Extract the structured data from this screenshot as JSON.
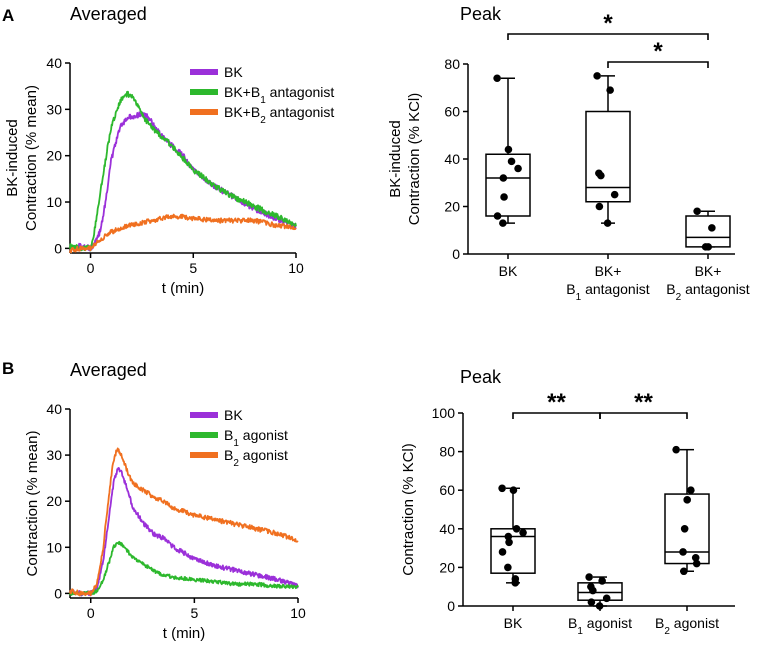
{
  "panels": {
    "A": {
      "letter": "A",
      "line": {
        "title": "Averaged",
        "xlabel": "t (min)",
        "ylabel_lines": [
          "BK-induced",
          "Contraction (% mean)"
        ],
        "xlim": [
          -1,
          10
        ],
        "ylim": [
          -1,
          40
        ],
        "xticks": [
          0,
          5,
          10
        ],
        "yticks": [
          0,
          10,
          20,
          30,
          40
        ],
        "legend": [
          {
            "label": "BK",
            "color": "#9b30d9"
          },
          {
            "label": "BK+B",
            "sub": "1",
            "label_suffix": " antagonist",
            "color": "#2db82d"
          },
          {
            "label": "BK+B",
            "sub": "2",
            "label_suffix": " antagonist",
            "color": "#f07020"
          }
        ]
      },
      "box": {
        "title": "Peak",
        "ylabel_lines": [
          "BK-induced",
          "Contraction (% KCl)"
        ],
        "ylim": [
          0,
          80
        ],
        "yticks": [
          0,
          20,
          40,
          60,
          80
        ],
        "categories": [
          {
            "lines": [
              {
                "text": "BK"
              }
            ]
          },
          {
            "lines": [
              {
                "text": "BK+"
              },
              {
                "text": "B",
                "sub": "1",
                "suffix": " antagonist"
              }
            ]
          },
          {
            "lines": [
              {
                "text": "BK+"
              },
              {
                "text": "B",
                "sub": "2",
                "suffix": " antagonist"
              }
            ]
          }
        ],
        "significance": [
          {
            "from": 0,
            "to": 2,
            "label": "*"
          },
          {
            "from": 1,
            "to": 2,
            "label": "*"
          }
        ]
      }
    },
    "B": {
      "letter": "B",
      "line": {
        "title": "Averaged",
        "xlabel": "t (min)",
        "ylabel_lines": [
          "Contraction (% mean)"
        ],
        "xlim": [
          -1,
          10
        ],
        "ylim": [
          -1,
          40
        ],
        "xticks": [
          0,
          5,
          10
        ],
        "yticks": [
          0,
          10,
          20,
          30,
          40
        ],
        "legend": [
          {
            "label": "BK",
            "color": "#9b30d9"
          },
          {
            "label": "B",
            "sub": "1",
            "label_suffix": " agonist",
            "color": "#2db82d"
          },
          {
            "label": "B",
            "sub": "2",
            "label_suffix": " agonist",
            "color": "#f07020"
          }
        ]
      },
      "box": {
        "title": "Peak",
        "ylabel_lines": [
          "Contraction (% KCl)"
        ],
        "ylim": [
          0,
          100
        ],
        "yticks": [
          0,
          20,
          40,
          60,
          80,
          100
        ],
        "categories": [
          {
            "lines": [
              {
                "text": "BK"
              }
            ]
          },
          {
            "lines": [
              {
                "text": "B",
                "sub": "1",
                "suffix": " agonist"
              }
            ]
          },
          {
            "lines": [
              {
                "text": "B",
                "sub": "2",
                "suffix": " agonist"
              }
            ]
          }
        ],
        "significance": [
          {
            "from": 0,
            "to": 1,
            "label": "**"
          },
          {
            "from": 1,
            "to": 2,
            "label": "**"
          }
        ]
      }
    }
  },
  "chart_data": [
    {
      "id": "A-averaged",
      "type": "line",
      "title": "Averaged",
      "xlabel": "t (min)",
      "ylabel": "BK-induced Contraction (% mean)",
      "xlim": [
        -1,
        10
      ],
      "ylim": [
        -1,
        40
      ],
      "grid": false,
      "legend_position": "top-right",
      "series": [
        {
          "name": "BK",
          "color": "#9b30d9",
          "noise": 0.6,
          "x": [
            -1,
            -0.5,
            0,
            0.2,
            0.5,
            0.8,
            1.0,
            1.3,
            1.5,
            1.8,
            2.0,
            2.3,
            2.5,
            2.8,
            3.0,
            3.5,
            4.0,
            4.5,
            5.0,
            6.0,
            7.0,
            8.0,
            9.0,
            10.0
          ],
          "y": [
            0,
            0.5,
            0,
            1,
            4,
            12,
            19,
            24,
            26.5,
            28,
            28.5,
            28.8,
            29,
            28.3,
            27,
            24,
            22,
            20,
            17,
            13.5,
            11,
            8.5,
            6.5,
            4.5
          ]
        },
        {
          "name": "BK+B1 antagonist",
          "color": "#2db82d",
          "noise": 0.6,
          "x": [
            -1,
            -0.5,
            0,
            0.2,
            0.5,
            0.8,
            1.0,
            1.3,
            1.5,
            1.8,
            2.0,
            2.3,
            2.5,
            2.8,
            3.0,
            3.5,
            4.0,
            4.5,
            5.0,
            6.0,
            7.0,
            8.0,
            9.0,
            10.0
          ],
          "y": [
            0.5,
            0,
            0,
            4,
            13,
            21,
            26,
            30,
            32,
            33.3,
            33,
            31,
            29,
            27,
            26,
            24,
            22,
            19.5,
            17,
            13.5,
            11,
            9,
            7,
            5
          ]
        },
        {
          "name": "BK+B2 antagonist",
          "color": "#f07020",
          "noise": 0.5,
          "x": [
            -1,
            -0.5,
            0,
            0.5,
            1.0,
            1.5,
            2.0,
            2.5,
            3.0,
            3.5,
            4.0,
            5.0,
            6.0,
            7.0,
            8.0,
            9.0,
            10.0
          ],
          "y": [
            -0.5,
            0,
            0,
            2,
            3.5,
            4.5,
            5,
            5.5,
            6,
            6.5,
            7,
            6.5,
            6,
            6,
            6,
            5,
            4.5
          ]
        }
      ]
    },
    {
      "id": "A-peak",
      "type": "box",
      "title": "Peak",
      "ylabel": "BK-induced Contraction (% KCl)",
      "ylim": [
        0,
        80
      ],
      "categories": [
        "BK",
        "BK+B1 antagonist",
        "BK+B2 antagonist"
      ],
      "boxes": [
        {
          "min": 13,
          "q1": 16,
          "median": 32,
          "q3": 42,
          "max": 74,
          "points": [
            74,
            44,
            39,
            36,
            32,
            24,
            16,
            13
          ]
        },
        {
          "min": 13,
          "q1": 22,
          "median": 28,
          "q3": 60,
          "max": 75,
          "points": [
            75,
            69,
            34,
            33,
            25,
            20,
            13
          ]
        },
        {
          "min": 3,
          "q1": 3,
          "median": 7,
          "q3": 16,
          "max": 18,
          "points": [
            18,
            11,
            3,
            3
          ]
        }
      ],
      "significance": [
        {
          "pair": [
            "BK",
            "BK+B2 antagonist"
          ],
          "label": "*"
        },
        {
          "pair": [
            "BK+B1 antagonist",
            "BK+B2 antagonist"
          ],
          "label": "*"
        }
      ]
    },
    {
      "id": "B-averaged",
      "type": "line",
      "title": "Averaged",
      "xlabel": "t (min)",
      "ylabel": "Contraction (% mean)",
      "xlim": [
        -1,
        10
      ],
      "ylim": [
        -1,
        40
      ],
      "grid": false,
      "legend_position": "top-right",
      "series": [
        {
          "name": "BK",
          "color": "#9b30d9",
          "noise": 0.5,
          "x": [
            -1,
            -0.5,
            0,
            0.3,
            0.6,
            0.9,
            1.1,
            1.3,
            1.5,
            1.8,
            2.0,
            2.5,
            3.0,
            3.5,
            4.0,
            5.0,
            6.0,
            7.0,
            8.0,
            9.0,
            10.0
          ],
          "y": [
            0.5,
            0,
            0,
            1,
            7,
            17,
            24,
            27,
            26,
            22,
            19,
            15.5,
            13,
            12,
            10,
            7.5,
            6,
            5,
            4,
            3,
            1.5
          ]
        },
        {
          "name": "B1 agonist",
          "color": "#2db82d",
          "noise": 0.4,
          "x": [
            -1,
            -0.5,
            0,
            0.3,
            0.6,
            0.9,
            1.1,
            1.3,
            1.5,
            1.8,
            2.0,
            2.5,
            3.0,
            3.5,
            4.0,
            5.0,
            6.0,
            7.0,
            8.0,
            9.0,
            10.0
          ],
          "y": [
            0,
            0,
            0,
            0.5,
            3,
            7,
            10,
            11,
            10.5,
            9,
            8,
            6.5,
            5,
            4,
            3.5,
            3,
            2.5,
            2,
            2,
            1.5,
            1.5
          ]
        },
        {
          "name": "B2 agonist",
          "color": "#f07020",
          "noise": 0.5,
          "x": [
            -1,
            -0.5,
            0,
            0.3,
            0.6,
            0.9,
            1.1,
            1.3,
            1.5,
            1.8,
            2.0,
            2.5,
            3.0,
            3.5,
            4.0,
            5.0,
            6.0,
            7.0,
            8.0,
            9.0,
            10.0
          ],
          "y": [
            0.5,
            0,
            0,
            2,
            10,
            22,
            29,
            31.5,
            30,
            26,
            24,
            22.5,
            21,
            20,
            18.5,
            17,
            16,
            15,
            14,
            13,
            11.5
          ]
        }
      ]
    },
    {
      "id": "B-peak",
      "type": "box",
      "title": "Peak",
      "ylabel": "Contraction (% KCl)",
      "ylim": [
        0,
        100
      ],
      "categories": [
        "BK",
        "B1 agonist",
        "B2 agonist"
      ],
      "boxes": [
        {
          "min": 12,
          "q1": 17,
          "median": 36,
          "q3": 40,
          "max": 61,
          "points": [
            61,
            60,
            40,
            38,
            36,
            33,
            28,
            20,
            14,
            12
          ]
        },
        {
          "min": 0,
          "q1": 3,
          "median": 7,
          "q3": 12,
          "max": 15,
          "points": [
            15,
            13,
            10,
            8,
            4,
            2,
            0
          ]
        },
        {
          "min": 18,
          "q1": 22,
          "median": 28,
          "q3": 58,
          "max": 81,
          "points": [
            81,
            60,
            55,
            40,
            28,
            25,
            22,
            18
          ]
        }
      ],
      "significance": [
        {
          "pair": [
            "BK",
            "B1 agonist"
          ],
          "label": "**"
        },
        {
          "pair": [
            "B1 agonist",
            "B2 agonist"
          ],
          "label": "**"
        }
      ]
    }
  ]
}
